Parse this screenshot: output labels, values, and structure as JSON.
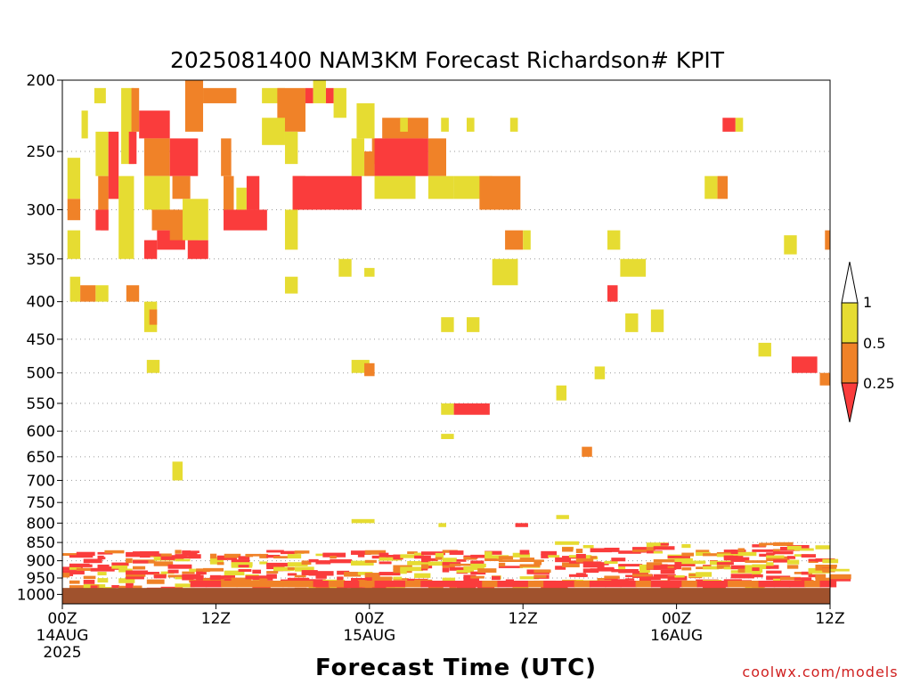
{
  "chart_data": {
    "type": "heatmap",
    "title": "2025081400 NAM3KM Forecast Richardson# KPIT",
    "xlabel": "Forecast Time (UTC)",
    "ylabel": "",
    "x_unit": "forecast hour",
    "xlim": [
      0,
      60
    ],
    "ylim": [
      1000,
      200
    ],
    "y_scale": "log-pressure",
    "grid": "dotted horizontal at pressure ticks",
    "y_ticks": [
      "200",
      "250",
      "300",
      "350",
      "400",
      "450",
      "500",
      "550",
      "600",
      "650",
      "700",
      "750",
      "800",
      "850",
      "900",
      "950",
      "1000"
    ],
    "x_ticks": [
      {
        "hour": 0,
        "lines": [
          "00Z",
          "14AUG",
          "2025"
        ]
      },
      {
        "hour": 12,
        "lines": [
          "12Z"
        ]
      },
      {
        "hour": 24,
        "lines": [
          "00Z",
          "15AUG"
        ]
      },
      {
        "hour": 36,
        "lines": [
          "12Z"
        ]
      },
      {
        "hour": 48,
        "lines": [
          "00Z",
          "16AUG"
        ]
      },
      {
        "hour": 60,
        "lines": [
          "12Z"
        ]
      }
    ],
    "colorbar": {
      "labels": [
        "1",
        "0.5",
        "0.25"
      ],
      "colors": {
        "ri_lt_1": "#e6dc32",
        "ri_lt_0_5": "#f08228",
        "ri_lt_0_25": "#fa3c3c"
      }
    },
    "ground_color": "#a0522d",
    "ground_top_hpa": 980,
    "categories": [
      "lt1",
      "lt05",
      "lt025"
    ],
    "cells": [
      [
        3.6,
        4.4,
        270,
        290,
        0
      ],
      [
        0.4,
        1.4,
        255,
        290,
        0
      ],
      [
        0.4,
        1.4,
        290,
        310,
        1
      ],
      [
        0.4,
        1.4,
        320,
        350,
        0
      ],
      [
        1.5,
        2.0,
        220,
        240,
        0
      ],
      [
        2.5,
        3.4,
        205,
        215,
        0
      ],
      [
        2.6,
        3.6,
        235,
        270,
        0
      ],
      [
        2.8,
        3.6,
        270,
        300,
        1
      ],
      [
        3.0,
        3.6,
        300,
        320,
        2
      ],
      [
        3.6,
        4.4,
        235,
        290,
        2
      ],
      [
        2.6,
        3.6,
        300,
        320,
        2
      ],
      [
        4.6,
        5.6,
        205,
        260,
        0
      ],
      [
        4.4,
        5.6,
        270,
        350,
        0
      ],
      [
        5.4,
        6.0,
        205,
        235,
        1
      ],
      [
        5.2,
        5.8,
        235,
        260,
        2
      ],
      [
        6.0,
        8.4,
        220,
        240,
        2
      ],
      [
        6.4,
        8.4,
        240,
        270,
        1
      ],
      [
        6.4,
        8.4,
        270,
        300,
        0
      ],
      [
        7.0,
        9.0,
        300,
        320,
        1
      ],
      [
        7.4,
        9.6,
        320,
        340,
        2
      ],
      [
        6.4,
        7.4,
        330,
        350,
        2
      ],
      [
        8.4,
        10.6,
        240,
        270,
        2
      ],
      [
        8.6,
        10.0,
        270,
        290,
        1
      ],
      [
        8.4,
        10.6,
        300,
        330,
        1
      ],
      [
        9.8,
        11.4,
        330,
        350,
        2
      ],
      [
        9.4,
        11.4,
        290,
        330,
        0
      ],
      [
        9.6,
        11.0,
        200,
        235,
        1
      ],
      [
        11.0,
        13.6,
        205,
        215,
        1
      ],
      [
        12.4,
        13.2,
        240,
        270,
        1
      ],
      [
        12.6,
        13.4,
        270,
        300,
        1
      ],
      [
        12.6,
        16.0,
        300,
        320,
        2
      ],
      [
        13.6,
        14.4,
        280,
        300,
        0
      ],
      [
        14.4,
        15.4,
        270,
        300,
        2
      ],
      [
        15.6,
        17.4,
        205,
        215,
        0
      ],
      [
        16.8,
        19.0,
        205,
        235,
        1
      ],
      [
        15.6,
        17.4,
        225,
        245,
        0
      ],
      [
        17.4,
        18.4,
        235,
        260,
        0
      ],
      [
        18.0,
        19.0,
        270,
        300,
        1
      ],
      [
        17.4,
        18.4,
        300,
        340,
        0
      ],
      [
        19.0,
        19.6,
        205,
        215,
        2
      ],
      [
        19.6,
        20.6,
        200,
        215,
        0
      ],
      [
        20.6,
        21.2,
        205,
        215,
        2
      ],
      [
        21.2,
        22.2,
        205,
        225,
        0
      ],
      [
        18.0,
        23.4,
        270,
        300,
        2
      ],
      [
        22.6,
        23.6,
        240,
        270,
        0
      ],
      [
        23.6,
        24.4,
        250,
        270,
        1
      ],
      [
        24.2,
        25.0,
        240,
        260,
        1
      ],
      [
        23.0,
        24.4,
        215,
        240,
        0
      ],
      [
        24.4,
        28.6,
        240,
        270,
        2
      ],
      [
        25.0,
        28.6,
        225,
        240,
        1
      ],
      [
        24.4,
        27.6,
        270,
        290,
        0
      ],
      [
        25.2,
        28.2,
        240,
        250,
        2
      ],
      [
        28.6,
        30.0,
        240,
        270,
        1
      ],
      [
        28.6,
        30.6,
        270,
        290,
        0
      ],
      [
        30.6,
        33.6,
        270,
        290,
        0
      ],
      [
        32.6,
        35.8,
        270,
        300,
        1
      ],
      [
        35.0,
        35.6,
        225,
        235,
        0
      ],
      [
        26.4,
        27.0,
        225,
        235,
        0
      ],
      [
        29.6,
        30.2,
        225,
        235,
        0
      ],
      [
        31.6,
        32.2,
        225,
        235,
        0
      ],
      [
        0.6,
        1.4,
        370,
        400,
        0
      ],
      [
        1.4,
        2.6,
        380,
        400,
        1
      ],
      [
        2.6,
        3.6,
        380,
        400,
        0
      ],
      [
        5.0,
        6.0,
        380,
        400,
        1
      ],
      [
        6.4,
        7.4,
        400,
        440,
        0
      ],
      [
        6.8,
        7.4,
        410,
        430,
        1
      ],
      [
        21.6,
        22.6,
        350,
        370,
        0
      ],
      [
        23.6,
        24.4,
        360,
        370,
        0
      ],
      [
        17.4,
        18.4,
        370,
        390,
        0
      ],
      [
        33.6,
        35.6,
        350,
        380,
        0
      ],
      [
        34.6,
        36.0,
        320,
        340,
        1
      ],
      [
        36.0,
        36.6,
        320,
        340,
        0
      ],
      [
        42.6,
        43.6,
        320,
        340,
        0
      ],
      [
        43.6,
        45.6,
        350,
        370,
        0
      ],
      [
        42.6,
        43.4,
        380,
        400,
        2
      ],
      [
        44.0,
        45.0,
        415,
        440,
        0
      ],
      [
        29.6,
        30.6,
        420,
        440,
        0
      ],
      [
        31.6,
        32.6,
        420,
        440,
        0
      ],
      [
        54.4,
        55.4,
        455,
        475,
        0
      ],
      [
        57.0,
        59.0,
        475,
        500,
        2
      ],
      [
        59.2,
        60.0,
        500,
        520,
        1
      ],
      [
        59.6,
        60.0,
        320,
        340,
        1
      ],
      [
        46.0,
        47.0,
        410,
        440,
        0
      ],
      [
        56.4,
        57.4,
        325,
        345,
        0
      ],
      [
        50.2,
        51.2,
        270,
        290,
        0
      ],
      [
        51.2,
        52.0,
        270,
        290,
        1
      ],
      [
        52.6,
        53.2,
        225,
        235,
        0
      ],
      [
        51.6,
        52.6,
        225,
        235,
        2
      ],
      [
        6.6,
        7.6,
        480,
        500,
        0
      ],
      [
        22.6,
        24.0,
        480,
        500,
        0
      ],
      [
        23.6,
        24.4,
        485,
        505,
        1
      ],
      [
        29.6,
        30.6,
        550,
        570,
        0
      ],
      [
        30.6,
        33.4,
        550,
        570,
        2
      ],
      [
        29.6,
        30.6,
        605,
        615,
        0
      ],
      [
        38.6,
        39.4,
        520,
        545,
        0
      ],
      [
        40.6,
        41.4,
        630,
        650,
        1
      ],
      [
        41.6,
        42.4,
        490,
        510,
        0
      ],
      [
        8.6,
        9.4,
        660,
        700,
        0
      ],
      [
        22.6,
        24.4,
        790,
        800,
        0
      ],
      [
        29.4,
        30.0,
        800,
        810,
        0
      ],
      [
        35.4,
        36.4,
        800,
        810,
        2
      ],
      [
        38.6,
        39.6,
        780,
        790,
        0
      ]
    ],
    "low_levels": "scattered Ri<1, <0.5 and <0.25 streaks between about 850 and 990 hPa throughout the period"
  }
}
